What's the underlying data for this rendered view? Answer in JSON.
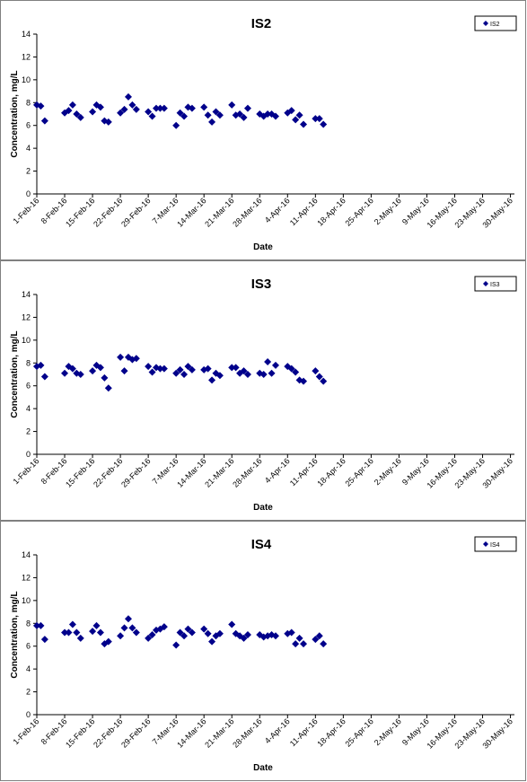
{
  "chart_data": [
    {
      "type": "scatter",
      "title": "IS2",
      "xlabel": "Date",
      "ylabel": "Concentration, mg/L",
      "ylim": [
        0,
        14
      ],
      "yticks": [
        0,
        2,
        4,
        6,
        8,
        10,
        12,
        14
      ],
      "xlim": [
        "2016-02-01",
        "2016-05-31"
      ],
      "xticks": [
        "1-Feb-16",
        "8-Feb-16",
        "15-Feb-16",
        "22-Feb-16",
        "29-Feb-16",
        "7-Mar-16",
        "14-Mar-16",
        "21-Mar-16",
        "28-Mar-16",
        "4-Apr-16",
        "11-Apr-16",
        "18-Apr-16",
        "25-Apr-16",
        "2-May-16",
        "9-May-16",
        "16-May-16",
        "23-May-16",
        "30-May-16"
      ],
      "legend": "top-right",
      "color": "#00008B",
      "series": [
        {
          "name": "IS2",
          "points": [
            [
              "2016-02-01",
              7.8
            ],
            [
              "2016-02-02",
              7.7
            ],
            [
              "2016-02-03",
              6.4
            ],
            [
              "2016-02-08",
              7.1
            ],
            [
              "2016-02-09",
              7.3
            ],
            [
              "2016-02-10",
              7.8
            ],
            [
              "2016-02-11",
              7.0
            ],
            [
              "2016-02-12",
              6.7
            ],
            [
              "2016-02-15",
              7.2
            ],
            [
              "2016-02-16",
              7.8
            ],
            [
              "2016-02-17",
              7.6
            ],
            [
              "2016-02-18",
              6.4
            ],
            [
              "2016-02-19",
              6.3
            ],
            [
              "2016-02-22",
              7.1
            ],
            [
              "2016-02-23",
              7.4
            ],
            [
              "2016-02-24",
              8.5
            ],
            [
              "2016-02-25",
              7.8
            ],
            [
              "2016-02-26",
              7.4
            ],
            [
              "2016-02-29",
              7.2
            ],
            [
              "2016-03-01",
              6.8
            ],
            [
              "2016-03-02",
              7.5
            ],
            [
              "2016-03-03",
              7.5
            ],
            [
              "2016-03-04",
              7.5
            ],
            [
              "2016-03-07",
              6.0
            ],
            [
              "2016-03-08",
              7.1
            ],
            [
              "2016-03-09",
              6.8
            ],
            [
              "2016-03-10",
              7.6
            ],
            [
              "2016-03-11",
              7.5
            ],
            [
              "2016-03-14",
              7.6
            ],
            [
              "2016-03-15",
              6.9
            ],
            [
              "2016-03-16",
              6.3
            ],
            [
              "2016-03-17",
              7.2
            ],
            [
              "2016-03-18",
              6.9
            ],
            [
              "2016-03-21",
              7.8
            ],
            [
              "2016-03-22",
              6.9
            ],
            [
              "2016-03-23",
              7.0
            ],
            [
              "2016-03-24",
              6.7
            ],
            [
              "2016-03-25",
              7.5
            ],
            [
              "2016-03-28",
              7.0
            ],
            [
              "2016-03-29",
              6.8
            ],
            [
              "2016-03-30",
              7.0
            ],
            [
              "2016-03-31",
              7.0
            ],
            [
              "2016-04-01",
              6.8
            ],
            [
              "2016-04-04",
              7.1
            ],
            [
              "2016-04-05",
              7.3
            ],
            [
              "2016-04-06",
              6.5
            ],
            [
              "2016-04-07",
              6.9
            ],
            [
              "2016-04-08",
              6.1
            ],
            [
              "2016-04-11",
              6.6
            ],
            [
              "2016-04-12",
              6.6
            ],
            [
              "2016-04-13",
              6.1
            ]
          ]
        }
      ]
    },
    {
      "type": "scatter",
      "title": "IS3",
      "xlabel": "Date",
      "ylabel": "Concentration, mg/L",
      "ylim": [
        0,
        14
      ],
      "yticks": [
        0,
        2,
        4,
        6,
        8,
        10,
        12,
        14
      ],
      "xlim": [
        "2016-02-01",
        "2016-05-31"
      ],
      "xticks": [
        "1-Feb-16",
        "8-Feb-16",
        "15-Feb-16",
        "22-Feb-16",
        "29-Feb-16",
        "7-Mar-16",
        "14-Mar-16",
        "21-Mar-16",
        "28-Mar-16",
        "4-Apr-16",
        "11-Apr-16",
        "18-Apr-16",
        "25-Apr-16",
        "2-May-16",
        "9-May-16",
        "16-May-16",
        "23-May-16",
        "30-May-16"
      ],
      "legend": "top-right",
      "color": "#00008B",
      "series": [
        {
          "name": "IS3",
          "points": [
            [
              "2016-02-01",
              7.7
            ],
            [
              "2016-02-02",
              7.8
            ],
            [
              "2016-02-03",
              6.8
            ],
            [
              "2016-02-08",
              7.1
            ],
            [
              "2016-02-09",
              7.7
            ],
            [
              "2016-02-10",
              7.5
            ],
            [
              "2016-02-11",
              7.1
            ],
            [
              "2016-02-12",
              7.0
            ],
            [
              "2016-02-15",
              7.3
            ],
            [
              "2016-02-16",
              7.8
            ],
            [
              "2016-02-17",
              7.6
            ],
            [
              "2016-02-18",
              6.7
            ],
            [
              "2016-02-19",
              5.8
            ],
            [
              "2016-02-22",
              8.5
            ],
            [
              "2016-02-23",
              7.3
            ],
            [
              "2016-02-24",
              8.5
            ],
            [
              "2016-02-25",
              8.3
            ],
            [
              "2016-02-26",
              8.4
            ],
            [
              "2016-02-29",
              7.7
            ],
            [
              "2016-03-01",
              7.2
            ],
            [
              "2016-03-02",
              7.6
            ],
            [
              "2016-03-03",
              7.5
            ],
            [
              "2016-03-04",
              7.5
            ],
            [
              "2016-03-07",
              7.1
            ],
            [
              "2016-03-08",
              7.4
            ],
            [
              "2016-03-09",
              7.0
            ],
            [
              "2016-03-10",
              7.7
            ],
            [
              "2016-03-11",
              7.4
            ],
            [
              "2016-03-14",
              7.4
            ],
            [
              "2016-03-15",
              7.5
            ],
            [
              "2016-03-16",
              6.5
            ],
            [
              "2016-03-17",
              7.1
            ],
            [
              "2016-03-18",
              6.9
            ],
            [
              "2016-03-21",
              7.6
            ],
            [
              "2016-03-22",
              7.6
            ],
            [
              "2016-03-23",
              7.1
            ],
            [
              "2016-03-24",
              7.3
            ],
            [
              "2016-03-25",
              7.0
            ],
            [
              "2016-03-28",
              7.1
            ],
            [
              "2016-03-29",
              7.0
            ],
            [
              "2016-03-30",
              8.1
            ],
            [
              "2016-03-31",
              7.1
            ],
            [
              "2016-04-01",
              7.8
            ],
            [
              "2016-04-04",
              7.7
            ],
            [
              "2016-04-05",
              7.5
            ],
            [
              "2016-04-06",
              7.2
            ],
            [
              "2016-04-07",
              6.5
            ],
            [
              "2016-04-08",
              6.4
            ],
            [
              "2016-04-11",
              7.3
            ],
            [
              "2016-04-12",
              6.8
            ],
            [
              "2016-04-13",
              6.4
            ]
          ]
        }
      ]
    },
    {
      "type": "scatter",
      "title": "IS4",
      "xlabel": "Date",
      "ylabel": "Concentration, mg/L",
      "ylim": [
        0,
        14
      ],
      "yticks": [
        0,
        2,
        4,
        6,
        8,
        10,
        12,
        14
      ],
      "xlim": [
        "2016-02-01",
        "2016-05-31"
      ],
      "xticks": [
        "1-Feb-16",
        "8-Feb-16",
        "15-Feb-16",
        "22-Feb-16",
        "29-Feb-16",
        "7-Mar-16",
        "14-Mar-16",
        "21-Mar-16",
        "28-Mar-16",
        "4-Apr-16",
        "11-Apr-16",
        "18-Apr-16",
        "25-Apr-16",
        "2-May-16",
        "9-May-16",
        "16-May-16",
        "23-May-16",
        "30-May-16"
      ],
      "legend": "top-right",
      "color": "#00008B",
      "series": [
        {
          "name": "IS4",
          "points": [
            [
              "2016-02-01",
              7.8
            ],
            [
              "2016-02-02",
              7.8
            ],
            [
              "2016-02-03",
              6.6
            ],
            [
              "2016-02-08",
              7.2
            ],
            [
              "2016-02-09",
              7.2
            ],
            [
              "2016-02-10",
              7.9
            ],
            [
              "2016-02-11",
              7.2
            ],
            [
              "2016-02-12",
              6.7
            ],
            [
              "2016-02-15",
              7.3
            ],
            [
              "2016-02-16",
              7.8
            ],
            [
              "2016-02-17",
              7.2
            ],
            [
              "2016-02-18",
              6.2
            ],
            [
              "2016-02-19",
              6.4
            ],
            [
              "2016-02-22",
              6.9
            ],
            [
              "2016-02-23",
              7.6
            ],
            [
              "2016-02-24",
              8.4
            ],
            [
              "2016-02-25",
              7.6
            ],
            [
              "2016-02-26",
              7.2
            ],
            [
              "2016-02-29",
              6.7
            ],
            [
              "2016-03-01",
              7.0
            ],
            [
              "2016-03-02",
              7.4
            ],
            [
              "2016-03-03",
              7.5
            ],
            [
              "2016-03-04",
              7.7
            ],
            [
              "2016-03-07",
              6.1
            ],
            [
              "2016-03-08",
              7.2
            ],
            [
              "2016-03-09",
              6.9
            ],
            [
              "2016-03-10",
              7.5
            ],
            [
              "2016-03-11",
              7.2
            ],
            [
              "2016-03-14",
              7.5
            ],
            [
              "2016-03-15",
              7.1
            ],
            [
              "2016-03-16",
              6.4
            ],
            [
              "2016-03-17",
              6.9
            ],
            [
              "2016-03-18",
              7.1
            ],
            [
              "2016-03-21",
              7.9
            ],
            [
              "2016-03-22",
              7.1
            ],
            [
              "2016-03-23",
              6.9
            ],
            [
              "2016-03-24",
              6.7
            ],
            [
              "2016-03-25",
              7.0
            ],
            [
              "2016-03-28",
              7.0
            ],
            [
              "2016-03-29",
              6.8
            ],
            [
              "2016-03-30",
              6.9
            ],
            [
              "2016-03-31",
              7.0
            ],
            [
              "2016-04-01",
              6.9
            ],
            [
              "2016-04-04",
              7.1
            ],
            [
              "2016-04-05",
              7.2
            ],
            [
              "2016-04-06",
              6.2
            ],
            [
              "2016-04-07",
              6.7
            ],
            [
              "2016-04-08",
              6.2
            ],
            [
              "2016-04-11",
              6.6
            ],
            [
              "2016-04-12",
              6.9
            ],
            [
              "2016-04-13",
              6.2
            ]
          ]
        }
      ]
    }
  ]
}
